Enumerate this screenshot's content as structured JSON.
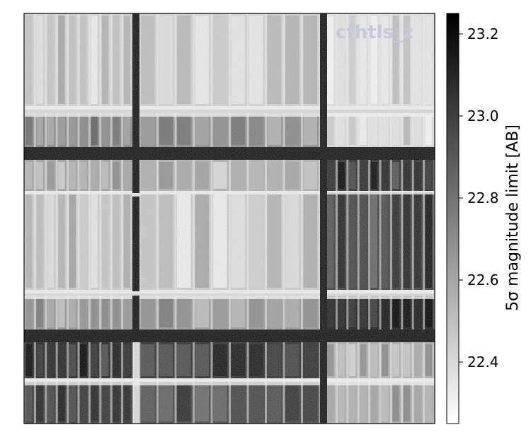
{
  "chart_data": {
    "type": "heatmap",
    "title": "",
    "overlay_label": "cfhtls_z",
    "colorbar": {
      "label": "5σ magnitude limit [AB]",
      "range": [
        22.25,
        23.25
      ],
      "ticks": [
        23.2,
        23.0,
        22.8,
        22.6,
        22.4
      ],
      "tick_labels": [
        "23.2",
        "23.0",
        "22.8",
        "22.6",
        "22.4"
      ],
      "colormap": "Greys",
      "colors": {
        "low": "#ffffff",
        "high": "#000000"
      }
    },
    "grid": false,
    "frame_color": "#000000"
  }
}
